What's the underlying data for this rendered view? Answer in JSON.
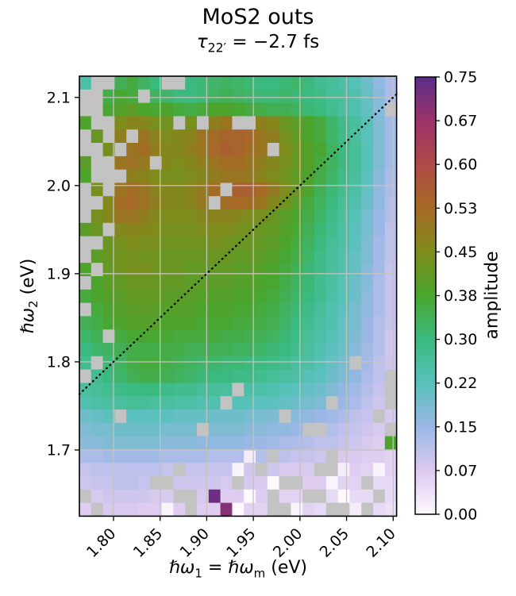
{
  "figure": {
    "title": "MoS2 outs"
  },
  "labels": {
    "subtitle_base": "τ",
    "subtitle_sub": "22′",
    "subtitle_rest": " = −2.7 fs",
    "xlabel_p1": "ℏω",
    "xlabel_s1": "1",
    "xlabel_eq": " = ",
    "xlabel_p2": "ℏω",
    "xlabel_s2": "m",
    "xlabel_unit": " (eV)",
    "ylabel_p1": "ℏω",
    "ylabel_s1": "2",
    "ylabel_unit": " (eV)",
    "colorbar": "amplitude"
  },
  "chart_data": {
    "type": "heatmap",
    "title": "MoS2 outs",
    "subtitle": "τ₂₂′ = −2.7 fs",
    "xlabel": "ℏω₁ = ℏωₘ (eV)",
    "ylabel": "ℏω₂ (eV)",
    "colorbar_label": "amplitude",
    "x_ticks": [
      1.8,
      1.85,
      1.9,
      1.95,
      2.0,
      2.05,
      2.1
    ],
    "x_tick_labels": [
      "1.80",
      "1.85",
      "1.90",
      "1.95",
      "2.00",
      "2.05",
      "2.10"
    ],
    "y_ticks": [
      2.1,
      2.0,
      1.9,
      1.8,
      1.7
    ],
    "y_tick_labels": [
      "2.1",
      "2.0",
      "1.9",
      "1.8",
      "1.7"
    ],
    "x_range": [
      1.7634,
      2.1037
    ],
    "y_range": [
      1.6249,
      2.1241
    ],
    "colorbar_range": [
      0.0,
      0.75
    ],
    "colorbar_tick_values": [
      0.75,
      0.675,
      0.6,
      0.525,
      0.45,
      0.375,
      0.3,
      0.225,
      0.15,
      0.075,
      0.0
    ],
    "colorbar_tick_labels": [
      "0.75",
      "0.67",
      "0.60",
      "0.53",
      "0.45",
      "0.38",
      "0.30",
      "0.22",
      "0.15",
      "0.07",
      "0.00"
    ],
    "diagonal_line": {
      "style": "dotted",
      "color": "#000000",
      "x1": 1.7634,
      "y1": 1.7634,
      "x2": 2.1037,
      "y2": 2.1037
    },
    "grid": {
      "show": true,
      "color": "#c7c3bd"
    },
    "masked_color": "#c3c3c3",
    "colormap_stops": [
      [
        0.0,
        "#fef9fe"
      ],
      [
        0.075,
        "#dccaf0"
      ],
      [
        0.15,
        "#9ab7e5"
      ],
      [
        0.225,
        "#58c1bb"
      ],
      [
        0.3,
        "#3bba80"
      ],
      [
        0.375,
        "#49a62e"
      ],
      [
        0.45,
        "#7e8c1b"
      ],
      [
        0.525,
        "#a66a26"
      ],
      [
        0.6,
        "#ae4a47"
      ],
      [
        0.675,
        "#9b3268"
      ],
      [
        0.75,
        "#5b2e89"
      ]
    ],
    "n_rows": 33,
    "n_cols": 27,
    "values": [
      [
        0.25,
        null,
        null,
        0.34,
        0.36,
        0.33,
        0.3,
        null,
        null,
        0.3,
        0.31,
        0.32,
        0.33,
        0.32,
        0.31,
        0.3,
        0.3,
        0.31,
        0.32,
        0.3,
        0.28,
        0.27,
        0.25,
        0.23,
        0.2,
        0.16,
        0.13
      ],
      [
        null,
        null,
        0.35,
        0.37,
        0.36,
        null,
        0.33,
        0.32,
        0.3,
        0.3,
        0.31,
        0.33,
        0.34,
        0.33,
        0.32,
        0.31,
        0.31,
        0.32,
        0.31,
        0.3,
        0.29,
        0.27,
        0.26,
        0.24,
        0.21,
        0.17,
        0.13
      ],
      [
        null,
        null,
        0.37,
        0.39,
        0.4,
        0.38,
        0.37,
        0.38,
        0.36,
        0.35,
        0.36,
        0.38,
        0.38,
        0.37,
        0.36,
        0.35,
        0.34,
        0.34,
        0.33,
        0.31,
        0.3,
        0.28,
        0.26,
        0.24,
        0.21,
        0.17,
        null
      ],
      [
        0.38,
        null,
        null,
        0.45,
        0.47,
        0.46,
        0.44,
        0.43,
        null,
        0.44,
        null,
        0.48,
        0.5,
        null,
        null,
        0.48,
        0.46,
        0.42,
        0.4,
        0.38,
        0.36,
        0.32,
        0.29,
        0.26,
        0.23,
        0.18,
        0.14
      ],
      [
        null,
        0.42,
        null,
        0.48,
        null,
        0.5,
        0.47,
        0.45,
        0.46,
        0.47,
        0.5,
        0.52,
        0.54,
        0.54,
        0.53,
        0.5,
        0.48,
        0.44,
        0.41,
        0.38,
        0.36,
        0.32,
        0.29,
        0.26,
        0.22,
        0.18,
        0.14
      ],
      [
        null,
        null,
        0.44,
        null,
        0.5,
        0.52,
        0.48,
        0.46,
        0.46,
        0.48,
        0.5,
        0.53,
        0.55,
        0.54,
        0.52,
        0.5,
        null,
        0.45,
        0.42,
        0.39,
        0.37,
        0.33,
        0.3,
        0.27,
        0.23,
        0.18,
        0.14
      ],
      [
        0.4,
        null,
        null,
        0.5,
        0.51,
        0.49,
        null,
        0.46,
        0.45,
        0.46,
        0.48,
        0.5,
        0.52,
        0.52,
        0.5,
        0.48,
        0.46,
        0.44,
        0.42,
        0.39,
        0.36,
        0.33,
        0.3,
        0.27,
        0.23,
        0.18,
        0.14
      ],
      [
        0.38,
        null,
        null,
        null,
        0.48,
        0.47,
        0.45,
        0.44,
        0.44,
        0.45,
        0.46,
        0.48,
        0.5,
        0.5,
        0.49,
        0.47,
        0.45,
        0.43,
        0.41,
        0.38,
        0.35,
        0.32,
        0.29,
        0.26,
        0.22,
        0.17,
        0.13
      ],
      [
        null,
        0.44,
        null,
        0.5,
        0.52,
        0.5,
        0.47,
        0.46,
        0.46,
        0.47,
        0.49,
        0.52,
        null,
        0.55,
        0.55,
        0.53,
        0.49,
        0.45,
        0.42,
        0.38,
        0.34,
        0.31,
        0.28,
        0.25,
        0.21,
        0.16,
        0.13
      ],
      [
        null,
        null,
        0.46,
        0.52,
        0.53,
        0.51,
        0.48,
        0.46,
        0.46,
        0.47,
        0.49,
        null,
        0.52,
        0.53,
        0.52,
        0.5,
        0.46,
        0.43,
        0.4,
        0.36,
        0.33,
        0.3,
        0.27,
        0.24,
        0.2,
        0.16,
        0.12
      ],
      [
        null,
        0.44,
        0.46,
        0.5,
        0.5,
        0.48,
        0.46,
        0.45,
        0.45,
        0.45,
        0.46,
        0.47,
        0.47,
        0.46,
        0.45,
        0.44,
        0.42,
        0.4,
        0.38,
        0.35,
        0.32,
        0.29,
        0.26,
        0.23,
        0.19,
        0.15,
        0.12
      ],
      [
        0.4,
        0.42,
        null,
        0.46,
        0.47,
        0.46,
        0.45,
        0.44,
        0.44,
        0.44,
        0.45,
        0.45,
        0.45,
        0.44,
        0.43,
        0.42,
        0.41,
        0.39,
        0.37,
        0.34,
        0.31,
        0.28,
        0.25,
        0.22,
        0.19,
        0.15,
        0.11
      ],
      [
        null,
        null,
        0.42,
        0.44,
        0.45,
        0.44,
        0.44,
        0.43,
        0.43,
        0.43,
        0.43,
        0.44,
        0.43,
        0.42,
        0.42,
        0.41,
        0.4,
        0.38,
        0.36,
        0.33,
        0.3,
        0.27,
        0.25,
        0.22,
        0.18,
        0.14,
        0.11
      ],
      [
        null,
        0.4,
        0.42,
        0.43,
        0.44,
        0.43,
        0.43,
        0.42,
        0.42,
        0.42,
        0.42,
        0.42,
        0.42,
        0.41,
        0.41,
        0.4,
        0.39,
        0.37,
        0.35,
        0.32,
        0.29,
        0.27,
        0.24,
        0.21,
        0.18,
        0.14,
        0.11
      ],
      [
        0.38,
        null,
        0.41,
        0.43,
        0.44,
        0.44,
        0.43,
        0.42,
        0.42,
        0.41,
        0.41,
        0.41,
        0.41,
        0.4,
        0.4,
        0.39,
        0.38,
        0.36,
        0.34,
        0.31,
        0.29,
        0.26,
        0.24,
        0.21,
        0.17,
        0.14,
        0.1
      ],
      [
        null,
        0.38,
        0.4,
        0.41,
        0.42,
        0.42,
        0.42,
        0.41,
        0.41,
        0.4,
        0.4,
        0.4,
        0.4,
        0.39,
        0.39,
        0.38,
        0.37,
        0.35,
        0.33,
        0.31,
        0.28,
        0.26,
        0.23,
        0.2,
        0.17,
        0.13,
        0.1
      ],
      [
        0.36,
        0.38,
        0.39,
        0.4,
        0.41,
        0.41,
        0.41,
        0.4,
        0.4,
        0.4,
        0.39,
        0.39,
        0.39,
        0.38,
        0.38,
        0.37,
        0.36,
        0.34,
        0.32,
        0.3,
        0.28,
        0.25,
        0.23,
        0.2,
        0.16,
        0.13,
        0.1
      ],
      [
        null,
        0.36,
        0.38,
        0.39,
        0.4,
        0.4,
        0.4,
        0.39,
        0.39,
        0.39,
        0.38,
        0.38,
        0.38,
        0.37,
        0.37,
        0.36,
        0.35,
        0.33,
        0.31,
        0.29,
        0.27,
        0.24,
        0.22,
        0.19,
        0.16,
        0.13,
        0.1
      ],
      [
        0.34,
        0.35,
        0.37,
        0.38,
        0.39,
        0.39,
        0.39,
        0.38,
        0.38,
        0.38,
        0.37,
        0.37,
        0.37,
        0.36,
        0.36,
        0.35,
        0.34,
        0.32,
        0.3,
        0.28,
        0.26,
        0.24,
        0.21,
        0.19,
        0.15,
        0.12,
        0.1
      ],
      [
        0.32,
        0.34,
        null,
        0.36,
        0.37,
        0.37,
        0.37,
        0.37,
        0.36,
        0.36,
        0.36,
        0.36,
        0.35,
        0.35,
        0.34,
        0.34,
        0.33,
        0.31,
        0.29,
        0.27,
        0.25,
        0.23,
        0.21,
        0.18,
        0.15,
        0.12,
        0.09
      ],
      [
        0.3,
        0.32,
        0.33,
        0.34,
        0.35,
        0.35,
        0.35,
        0.35,
        0.35,
        0.34,
        0.34,
        0.34,
        0.34,
        0.33,
        0.33,
        0.32,
        0.31,
        0.3,
        0.28,
        0.26,
        0.24,
        0.22,
        0.2,
        0.17,
        0.14,
        0.12,
        0.09
      ],
      [
        0.28,
        null,
        0.31,
        0.33,
        0.35,
        0.36,
        0.36,
        0.35,
        0.34,
        0.33,
        0.32,
        0.32,
        0.31,
        0.31,
        0.3,
        0.3,
        0.29,
        0.28,
        0.26,
        0.25,
        0.23,
        0.21,
        0.19,
        null,
        0.14,
        0.11,
        0.09
      ],
      [
        null,
        0.28,
        0.3,
        0.32,
        0.34,
        0.35,
        0.35,
        0.34,
        0.33,
        0.32,
        0.31,
        0.3,
        0.3,
        0.29,
        0.29,
        0.28,
        0.27,
        0.26,
        0.25,
        0.23,
        0.22,
        0.2,
        0.18,
        0.16,
        0.13,
        0.11,
        null
      ],
      [
        0.26,
        0.27,
        0.28,
        0.29,
        0.3,
        0.3,
        0.3,
        0.29,
        0.28,
        0.28,
        0.27,
        0.27,
        0.26,
        null,
        0.25,
        0.25,
        0.24,
        0.23,
        0.22,
        0.21,
        0.2,
        0.18,
        0.16,
        0.14,
        0.12,
        0.1,
        null
      ],
      [
        0.24,
        0.25,
        0.26,
        0.26,
        0.27,
        0.27,
        0.26,
        0.26,
        0.25,
        0.25,
        0.24,
        0.24,
        null,
        0.23,
        0.23,
        0.22,
        0.22,
        0.21,
        0.2,
        0.19,
        0.18,
        null,
        0.15,
        0.13,
        0.11,
        0.09,
        null
      ],
      [
        0.2,
        0.21,
        0.22,
        null,
        0.22,
        0.22,
        0.22,
        0.22,
        0.21,
        0.21,
        0.21,
        0.2,
        0.2,
        0.2,
        0.19,
        0.19,
        0.18,
        null,
        0.17,
        0.16,
        0.15,
        0.14,
        0.13,
        0.11,
        0.1,
        null,
        0.08
      ],
      [
        0.18,
        0.19,
        0.19,
        0.2,
        0.2,
        0.2,
        0.2,
        0.19,
        0.19,
        0.19,
        null,
        0.18,
        0.18,
        0.18,
        0.17,
        0.17,
        0.16,
        0.16,
        0.15,
        null,
        null,
        0.12,
        0.11,
        0.1,
        0.09,
        0.08,
        null
      ],
      [
        0.17,
        0.17,
        0.18,
        0.18,
        0.18,
        0.18,
        0.18,
        0.17,
        0.17,
        0.17,
        0.16,
        0.16,
        0.16,
        0.16,
        0.15,
        0.15,
        0.14,
        0.13,
        0.13,
        0.12,
        0.11,
        0.11,
        0.1,
        0.09,
        0.08,
        0.07,
        0.38
      ],
      [
        0.13,
        0.13,
        0.14,
        0.14,
        0.14,
        0.14,
        0.14,
        0.13,
        0.13,
        0.13,
        0.13,
        0.12,
        0.12,
        0.12,
        0.02,
        0.12,
        null,
        0.11,
        0.1,
        0.1,
        0.09,
        null,
        0.08,
        0.08,
        0.07,
        0.07,
        0.06
      ],
      [
        0.1,
        0.11,
        0.11,
        0.11,
        0.11,
        0.11,
        0.11,
        0.1,
        null,
        0.1,
        0.1,
        0.1,
        0.1,
        0.01,
        0.09,
        null,
        0.09,
        0.08,
        0.08,
        0.08,
        null,
        null,
        0.02,
        0.07,
        0.06,
        0.01,
        0.06
      ],
      [
        0.09,
        0.1,
        0.1,
        0.11,
        0.11,
        0.1,
        null,
        null,
        0.09,
        0.09,
        0.09,
        0.09,
        0.08,
        null,
        0.08,
        0.08,
        0.0,
        null,
        null,
        0.07,
        0.07,
        0.01,
        0.06,
        0.06,
        null,
        0.05,
        0.05
      ],
      [
        null,
        0.08,
        0.09,
        0.09,
        0.09,
        0.09,
        0.08,
        0.08,
        null,
        null,
        0.08,
        0.73,
        0.07,
        0.07,
        0.0,
        0.07,
        null,
        0.06,
        0.06,
        null,
        null,
        0.05,
        0.0,
        0.05,
        0.05,
        null,
        0.05
      ],
      [
        0.07,
        null,
        0.08,
        0.08,
        0.08,
        0.07,
        0.07,
        0.01,
        0.07,
        null,
        0.07,
        0.07,
        0.7,
        0.0,
        0.06,
        0.06,
        null,
        null,
        0.01,
        0.06,
        0.05,
        null,
        null,
        0.02,
        null,
        0.05,
        0.04
      ]
    ]
  }
}
